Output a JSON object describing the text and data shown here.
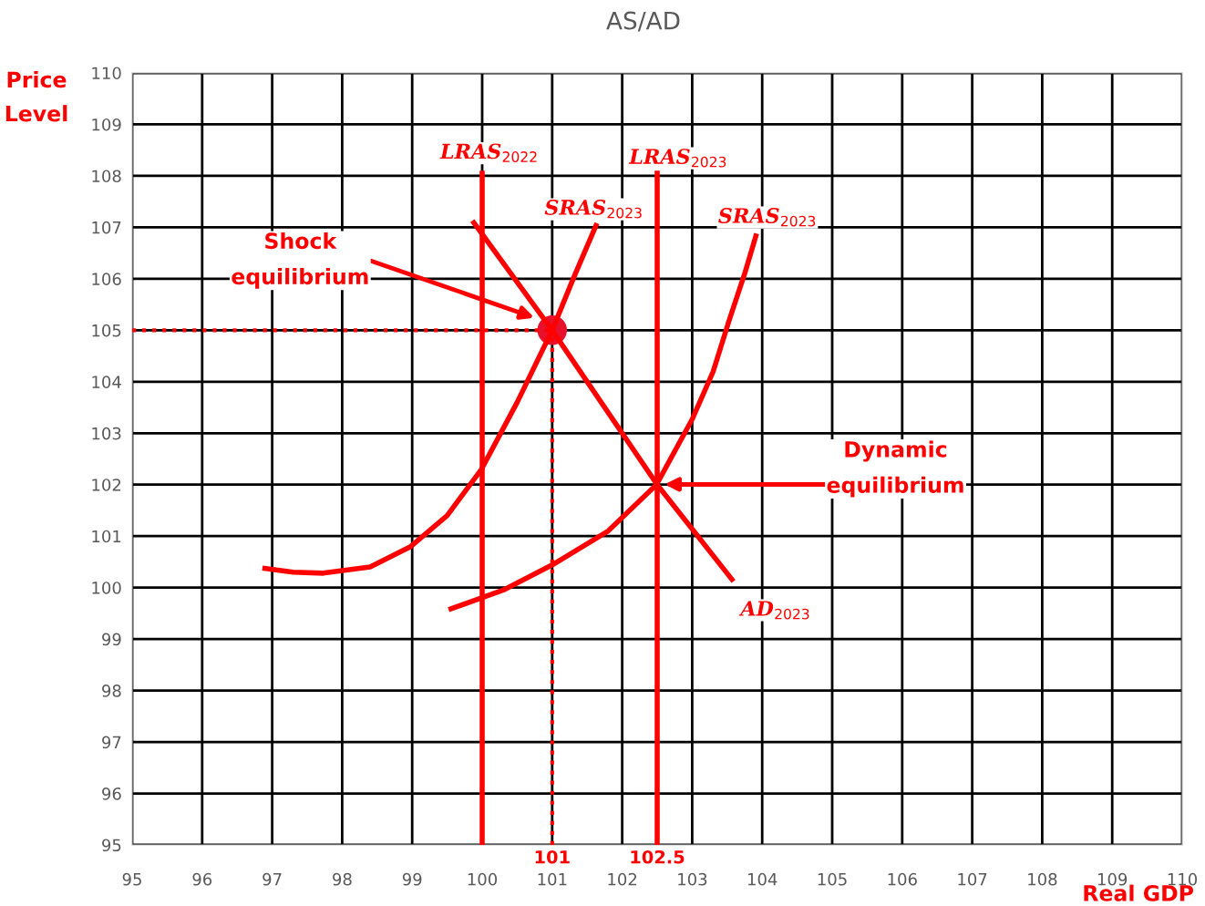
{
  "chart_data": {
    "type": "line",
    "title": "AS/AD",
    "xlabel": "Real GDP",
    "ylabel": "Price\nLevel",
    "xlim": [
      95,
      110
    ],
    "ylim": [
      95,
      110
    ],
    "xticks": [
      95,
      96,
      97,
      98,
      99,
      100,
      101,
      102,
      103,
      104,
      105,
      106,
      107,
      108,
      109,
      110
    ],
    "yticks": [
      95,
      96,
      97,
      98,
      99,
      100,
      101,
      102,
      103,
      104,
      105,
      106,
      107,
      108,
      109,
      110
    ],
    "grid": true,
    "legend": false,
    "series": [
      {
        "name": "LRAS$_{2022}$",
        "color": "#ff0000",
        "x": [
          100,
          100
        ],
        "values": [
          95,
          108.1
        ]
      },
      {
        "name": "LRAS$_{2023}$",
        "color": "#ff0000",
        "x": [
          102.5,
          102.5
        ],
        "values": [
          95,
          108.1
        ]
      },
      {
        "name": "SRAS$_{2023}$",
        "color": "#ff0000",
        "x": [
          96.86,
          97.3,
          97.73,
          98.4,
          98.97,
          99.5,
          99.99,
          100.5,
          101,
          101.3,
          101.64
        ],
        "values": [
          100.38,
          100.3,
          100.28,
          100.4,
          100.79,
          101.4,
          102.3,
          103.6,
          105,
          106,
          107.08
        ]
      },
      {
        "name": "SRAS$_{2023}$",
        "color": "#ff0000",
        "x": [
          99.52,
          100.3,
          101,
          101.8,
          102.49,
          103,
          103.3,
          103.53,
          103.75,
          103.92
        ],
        "values": [
          99.57,
          99.95,
          100.44,
          101.1,
          102.0,
          103.27,
          104.2,
          105.2,
          106.1,
          106.88
        ]
      },
      {
        "name": "AD$_{2023}$",
        "color": "#ff0000",
        "x": [
          99.86,
          101,
          102.5,
          103.59
        ],
        "values": [
          107.13,
          105,
          102,
          100.12
        ]
      },
      {
        "color": "#ff0000",
        "line_style": "dotted",
        "x": [
          95,
          101
        ],
        "values": [
          105,
          105
        ]
      },
      {
        "color": "#ff0000",
        "line_style": "dotted",
        "x": [
          101,
          101
        ],
        "values": [
          95,
          105
        ]
      },
      {
        "type": "scatter",
        "color": "#e8112d",
        "marker": "circle",
        "x": [
          101
        ],
        "values": [
          105
        ]
      }
    ],
    "annotations": [
      "Shock\nequilibrium",
      "Dynamic\nequilibrium",
      {
        "text": "101",
        "x": 101,
        "y": 95
      },
      {
        "text": "102.5",
        "x": 102.5,
        "y": 95
      }
    ]
  }
}
